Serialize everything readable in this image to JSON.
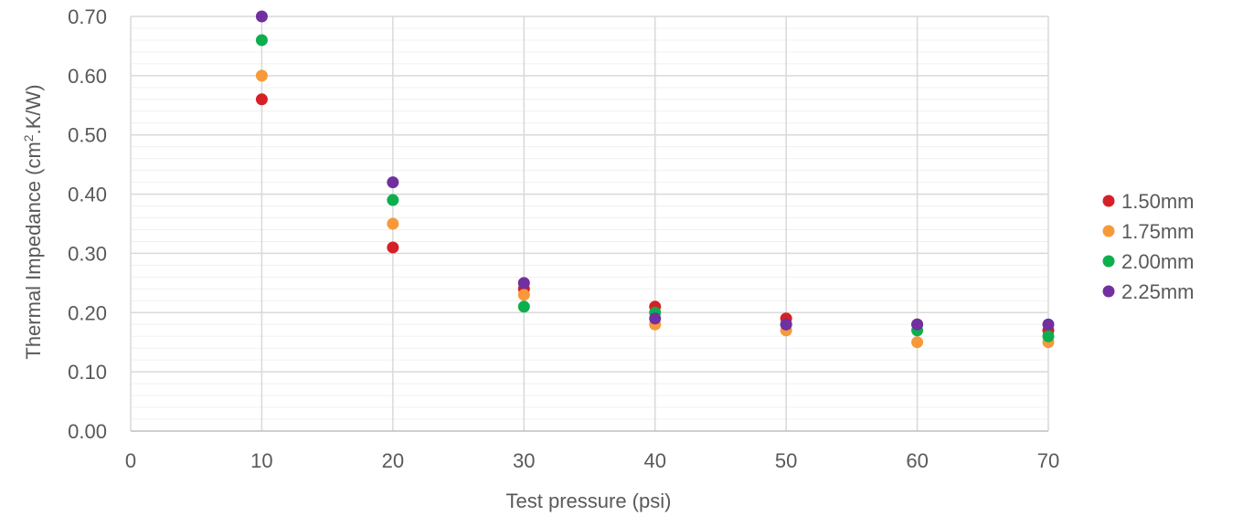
{
  "chart_data": {
    "type": "scatter",
    "title": "",
    "xlabel": "Test pressure (psi)",
    "ylabel_main": "Thermal Impedance (cm",
    "ylabel_sup": "2",
    "ylabel_tail": ".K/W)",
    "xlim": [
      0,
      70
    ],
    "ylim": [
      0,
      0.7
    ],
    "x_ticks": [
      0,
      10,
      20,
      30,
      40,
      50,
      60,
      70
    ],
    "y_ticks": [
      0,
      0.1,
      0.2,
      0.3,
      0.4,
      0.5,
      0.6,
      0.7
    ],
    "x_tick_labels": [
      "0",
      "10",
      "20",
      "30",
      "40",
      "50",
      "60",
      "70"
    ],
    "y_tick_labels": [
      "0.00",
      "0.10",
      "0.20",
      "0.30",
      "0.40",
      "0.50",
      "0.60",
      "0.70"
    ],
    "grid": true,
    "legend_position": "right",
    "series": [
      {
        "name": "1.50mm",
        "color": "#d62027",
        "x": [
          10,
          20,
          30,
          40,
          50,
          60,
          70
        ],
        "y": [
          0.56,
          0.31,
          0.24,
          0.21,
          0.19,
          0.18,
          0.17
        ]
      },
      {
        "name": "1.75mm",
        "color": "#f7993a",
        "x": [
          10,
          20,
          30,
          40,
          50,
          60,
          70
        ],
        "y": [
          0.6,
          0.35,
          0.23,
          0.18,
          0.17,
          0.15,
          0.15
        ]
      },
      {
        "name": "2.00mm",
        "color": "#0daf4d",
        "x": [
          10,
          20,
          30,
          40,
          50,
          60,
          70
        ],
        "y": [
          0.66,
          0.39,
          0.21,
          0.2,
          0.18,
          0.17,
          0.16
        ]
      },
      {
        "name": "2.25mm",
        "color": "#7030a0",
        "x": [
          10,
          20,
          30,
          40,
          50,
          60,
          70
        ],
        "y": [
          0.7,
          0.42,
          0.25,
          0.19,
          0.18,
          0.18,
          0.18
        ]
      }
    ]
  }
}
